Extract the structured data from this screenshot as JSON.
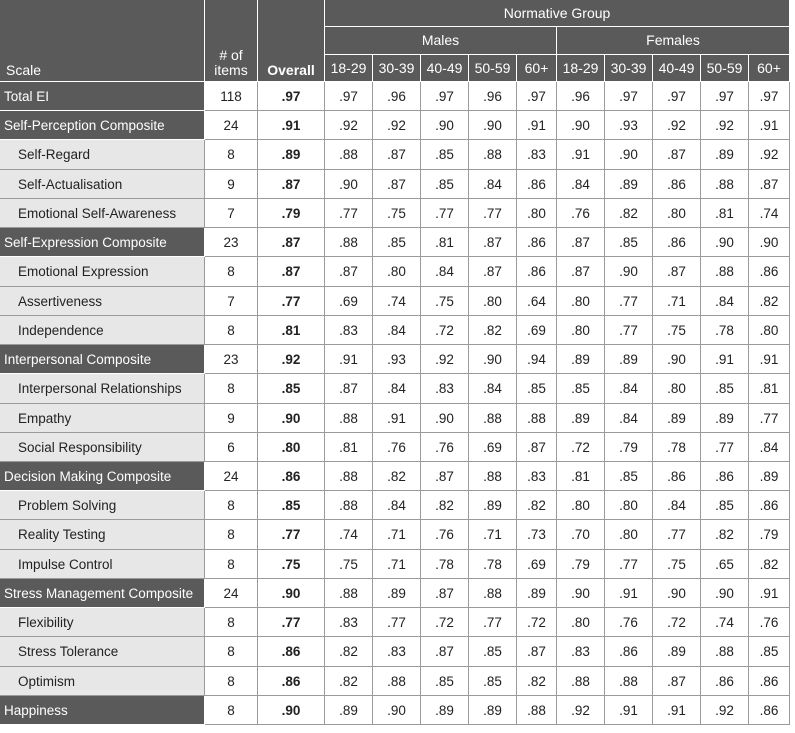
{
  "header": {
    "normative_group": "Normative Group",
    "scale": "Scale",
    "items": "# of items",
    "overall": "Overall",
    "males": "Males",
    "females": "Females",
    "age_groups": [
      "18-29",
      "30-39",
      "40-49",
      "50-59",
      "60+"
    ]
  },
  "rows": [
    {
      "scale": "Total EI",
      "items": 118,
      "overall": ".97",
      "males": [
        ".97",
        ".96",
        ".97",
        ".96",
        ".97"
      ],
      "females": [
        ".96",
        ".97",
        ".97",
        ".97",
        ".97"
      ]
    },
    {
      "scale": "Self-Perception Composite",
      "items": 24,
      "overall": ".91",
      "males": [
        ".92",
        ".92",
        ".90",
        ".90",
        ".91"
      ],
      "females": [
        ".90",
        ".93",
        ".92",
        ".92",
        ".91"
      ]
    },
    {
      "scale": "Self-Regard",
      "items": 8,
      "overall": ".89",
      "males": [
        ".88",
        ".87",
        ".85",
        ".88",
        ".83"
      ],
      "females": [
        ".91",
        ".90",
        ".87",
        ".89",
        ".92"
      ]
    },
    {
      "scale": "Self-Actualisation",
      "items": 9,
      "overall": ".87",
      "males": [
        ".90",
        ".87",
        ".85",
        ".84",
        ".86"
      ],
      "females": [
        ".84",
        ".89",
        ".86",
        ".88",
        ".87"
      ]
    },
    {
      "scale": "Emotional Self-Awareness",
      "items": 7,
      "overall": ".79",
      "males": [
        ".77",
        ".75",
        ".77",
        ".77",
        ".80"
      ],
      "females": [
        ".76",
        ".82",
        ".80",
        ".81",
        ".74"
      ]
    },
    {
      "scale": "Self-Expression Composite",
      "items": 23,
      "overall": ".87",
      "males": [
        ".88",
        ".85",
        ".81",
        ".87",
        ".86"
      ],
      "females": [
        ".87",
        ".85",
        ".86",
        ".90",
        ".90"
      ]
    },
    {
      "scale": "Emotional Expression",
      "items": 8,
      "overall": ".87",
      "males": [
        ".87",
        ".80",
        ".84",
        ".87",
        ".86"
      ],
      "females": [
        ".87",
        ".90",
        ".87",
        ".88",
        ".86"
      ]
    },
    {
      "scale": "Assertiveness",
      "items": 7,
      "overall": ".77",
      "males": [
        ".69",
        ".74",
        ".75",
        ".80",
        ".64"
      ],
      "females": [
        ".80",
        ".77",
        ".71",
        ".84",
        ".82"
      ]
    },
    {
      "scale": "Independence",
      "items": 8,
      "overall": ".81",
      "males": [
        ".83",
        ".84",
        ".72",
        ".82",
        ".69"
      ],
      "females": [
        ".80",
        ".77",
        ".75",
        ".78",
        ".80"
      ]
    },
    {
      "scale": "Interpersonal Composite",
      "items": 23,
      "overall": ".92",
      "males": [
        ".91",
        ".93",
        ".92",
        ".90",
        ".94"
      ],
      "females": [
        ".89",
        ".89",
        ".90",
        ".91",
        ".91"
      ]
    },
    {
      "scale": "Interpersonal Relationships",
      "items": 8,
      "overall": ".85",
      "males": [
        ".87",
        ".84",
        ".83",
        ".84",
        ".85"
      ],
      "females": [
        ".85",
        ".84",
        ".80",
        ".85",
        ".81"
      ]
    },
    {
      "scale": "Empathy",
      "items": 9,
      "overall": ".90",
      "males": [
        ".88",
        ".91",
        ".90",
        ".88",
        ".88"
      ],
      "females": [
        ".89",
        ".84",
        ".89",
        ".89",
        ".77"
      ]
    },
    {
      "scale": "Social Responsibility",
      "items": 6,
      "overall": ".80",
      "males": [
        ".81",
        ".76",
        ".76",
        ".69",
        ".87"
      ],
      "females": [
        ".72",
        ".79",
        ".78",
        ".77",
        ".84"
      ]
    },
    {
      "scale": "Decision Making Composite",
      "items": 24,
      "overall": ".86",
      "males": [
        ".88",
        ".82",
        ".87",
        ".88",
        ".83"
      ],
      "females": [
        ".81",
        ".85",
        ".86",
        ".86",
        ".89"
      ]
    },
    {
      "scale": "Problem Solving",
      "items": 8,
      "overall": ".85",
      "males": [
        ".88",
        ".84",
        ".82",
        ".89",
        ".82"
      ],
      "females": [
        ".80",
        ".80",
        ".84",
        ".85",
        ".86"
      ]
    },
    {
      "scale": "Reality Testing",
      "items": 8,
      "overall": ".77",
      "males": [
        ".74",
        ".71",
        ".76",
        ".71",
        ".73"
      ],
      "females": [
        ".70",
        ".80",
        ".77",
        ".82",
        ".79"
      ]
    },
    {
      "scale": "Impulse Control",
      "items": 8,
      "overall": ".75",
      "males": [
        ".75",
        ".71",
        ".78",
        ".78",
        ".69"
      ],
      "females": [
        ".79",
        ".77",
        ".75",
        ".65",
        ".82"
      ]
    },
    {
      "scale": "Stress Management Composite",
      "items": 24,
      "overall": ".90",
      "males": [
        ".88",
        ".89",
        ".87",
        ".88",
        ".89"
      ],
      "females": [
        ".90",
        ".91",
        ".90",
        ".90",
        ".91"
      ]
    },
    {
      "scale": "Flexibility",
      "items": 8,
      "overall": ".77",
      "males": [
        ".83",
        ".77",
        ".72",
        ".77",
        ".72"
      ],
      "females": [
        ".80",
        ".76",
        ".72",
        ".74",
        ".76"
      ]
    },
    {
      "scale": "Stress Tolerance",
      "items": 8,
      "overall": ".86",
      "males": [
        ".82",
        ".83",
        ".87",
        ".85",
        ".87"
      ],
      "females": [
        ".83",
        ".86",
        ".89",
        ".88",
        ".85"
      ]
    },
    {
      "scale": "Optimism",
      "items": 8,
      "overall": ".86",
      "males": [
        ".82",
        ".88",
        ".85",
        ".85",
        ".82"
      ],
      "females": [
        ".88",
        ".88",
        ".87",
        ".86",
        ".86"
      ]
    },
    {
      "scale": "Happiness",
      "items": 8,
      "overall": ".90",
      "males": [
        ".89",
        ".90",
        ".89",
        ".89",
        ".88"
      ],
      "females": [
        ".92",
        ".91",
        ".91",
        ".92",
        ".86"
      ]
    }
  ]
}
